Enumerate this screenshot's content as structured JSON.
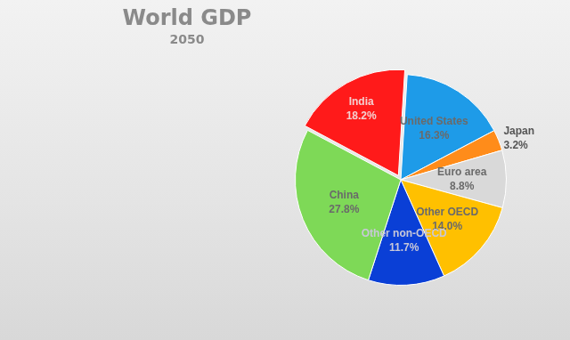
{
  "chart_data": {
    "type": "pie",
    "title": "World GDP",
    "subtitle": "2050",
    "categories": [
      "India",
      "United States",
      "Japan",
      "Euro area",
      "Other OECD",
      "Other non-OECD",
      "China"
    ],
    "values": [
      18.2,
      16.3,
      3.2,
      8.8,
      14.0,
      11.7,
      27.8
    ],
    "value_labels": [
      "18.2%",
      "16.3%",
      "3.2%",
      "8.8%",
      "14.0%",
      "11.7%",
      "27.8%"
    ],
    "colors": [
      "#ff1a1a",
      "#1e9be8",
      "#ff8c1a",
      "#d9d9d9",
      "#ffc000",
      "#0a3fd6",
      "#7ed957"
    ],
    "data_labels": true
  }
}
